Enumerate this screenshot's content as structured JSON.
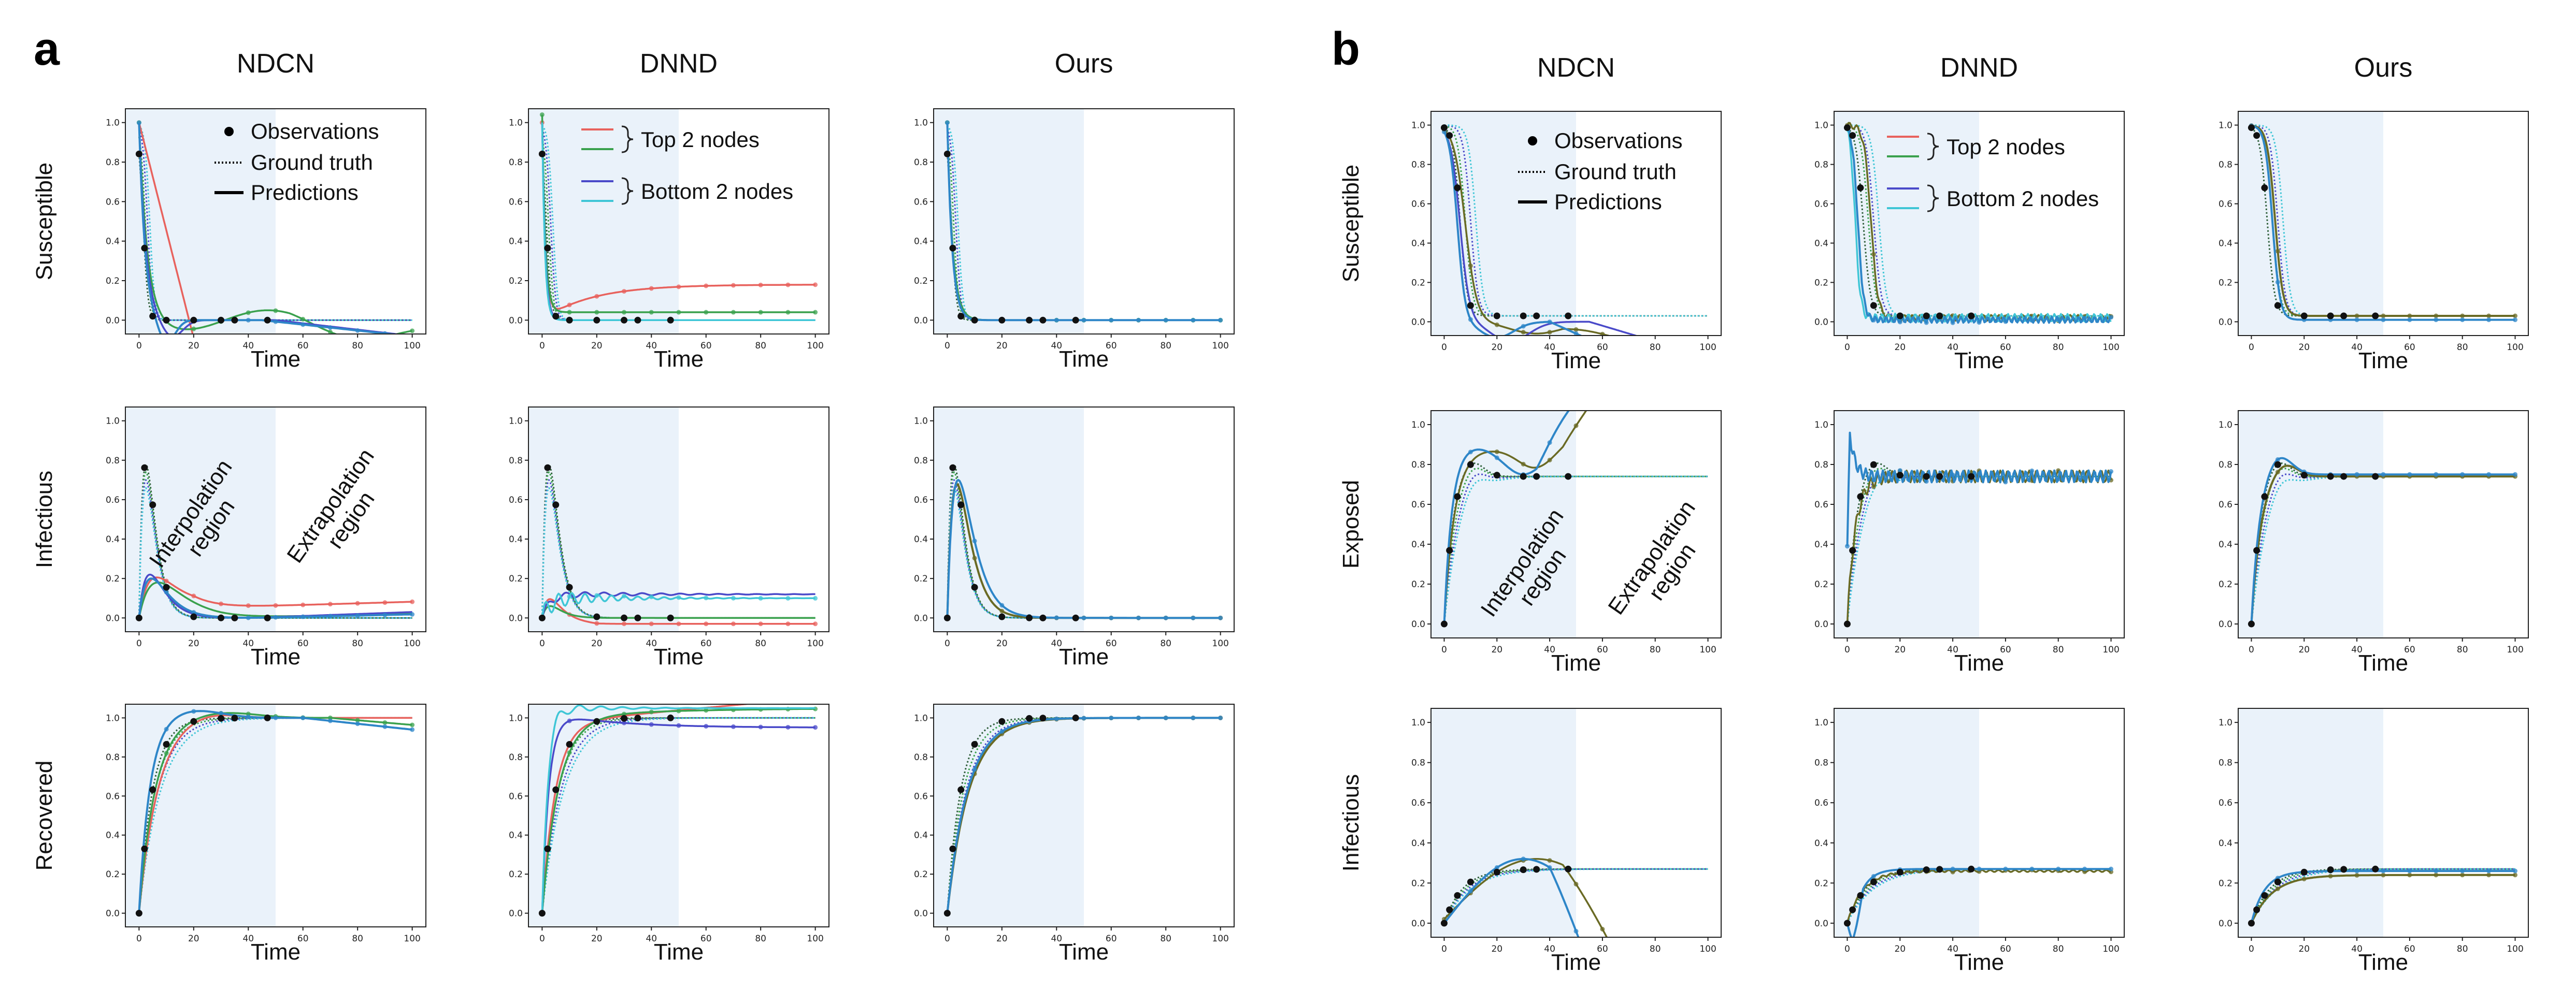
{
  "figure": {
    "panel_a_label": "a",
    "panel_b_label": "b"
  },
  "colors": {
    "top1": "#e8625d",
    "top2": "#3aa14d",
    "bottom1": "#4a4ac9",
    "bottom2": "#3fc6d6",
    "pred_dark1": "#2e86c8",
    "pred_dark2": "#6a6a24",
    "shade": "#eaf2fa",
    "ground": "#2f5f3a"
  },
  "legend": {
    "observations": "Observations",
    "ground_truth": "Ground truth",
    "predictions": "Predictions",
    "top_nodes": "Top 2 nodes",
    "bottom_nodes": "Bottom 2 nodes"
  },
  "annotations": {
    "interpolation": "Interpolation region",
    "extrapolation": "Extrapolation region"
  },
  "chart_data": [
    {
      "panel": "a",
      "type": "line",
      "columns": [
        "NDCN",
        "DNND",
        "Ours"
      ],
      "rows": [
        "Susceptible",
        "Infectious",
        "Recovered"
      ],
      "xlabel": "Time",
      "xlim": [
        0,
        100
      ],
      "ylim": [
        0.0,
        1.0
      ],
      "xticks": [
        "0",
        "20",
        "40",
        "60",
        "80",
        "100"
      ],
      "yticks": [
        "0.0",
        "0.2",
        "0.4",
        "0.6",
        "0.8",
        "1.0"
      ],
      "interpolation_region": [
        0,
        50
      ],
      "series": [
        "Observations",
        "Ground truth",
        "Predictions",
        "Top 2 nodes",
        "Bottom 2 nodes"
      ]
    },
    {
      "panel": "b",
      "type": "line",
      "columns": [
        "NDCN",
        "DNND",
        "Ours"
      ],
      "rows": [
        "Susceptible",
        "Exposed",
        "Infectious"
      ],
      "xlabel": "Time",
      "xlim": [
        0,
        100
      ],
      "ylim": [
        0.0,
        1.0
      ],
      "xticks": [
        "0",
        "20",
        "40",
        "60",
        "80",
        "100"
      ],
      "yticks": [
        "0.0",
        "0.2",
        "0.4",
        "0.6",
        "0.8",
        "1.0"
      ],
      "interpolation_region": [
        0,
        50
      ],
      "series": [
        "Observations",
        "Ground truth",
        "Predictions",
        "Top 2 nodes",
        "Bottom 2 nodes"
      ]
    }
  ]
}
